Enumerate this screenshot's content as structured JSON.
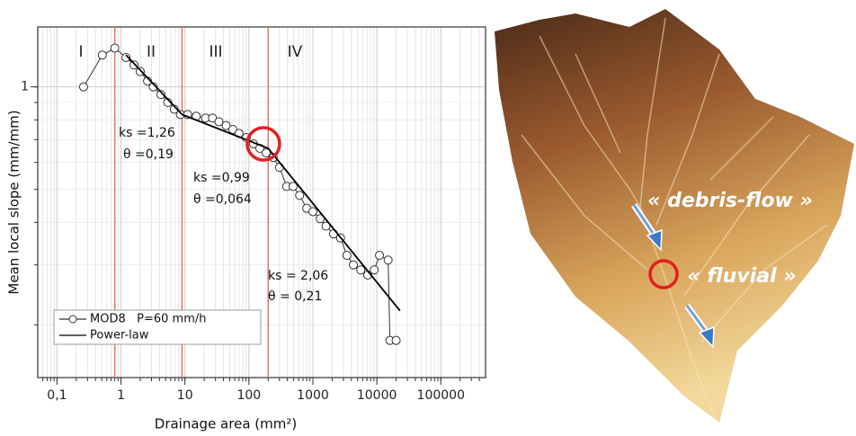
{
  "chart_data": {
    "type": "line",
    "x_label": "Drainage area (mm²)",
    "y_label": "Mean local slope (mm/mm)",
    "xlog": true,
    "ylog": true,
    "grid": true,
    "xlim": [
      0.05,
      500000
    ],
    "ylim": [
      0.14,
      1.5
    ],
    "xticks": [
      {
        "value": 0.1,
        "label": "0,1"
      },
      1,
      10,
      100,
      1000,
      10000,
      100000
    ],
    "yticks": [
      1
    ],
    "region_boundaries": [
      0.8,
      9,
      200
    ],
    "region_labels": [
      "I",
      "II",
      "III",
      "IV"
    ],
    "series": [
      {
        "name": "MOD8   P=60 mm/h",
        "color": "#333333",
        "marker": "circle",
        "x": [
          0.26,
          0.51,
          0.8,
          1.2,
          1.6,
          2.0,
          2.6,
          3.2,
          4.2,
          5.4,
          6.8,
          8.5,
          11,
          15,
          21,
          27,
          34,
          44,
          56,
          70,
          91,
          118,
          148,
          186,
          240,
          300,
          390,
          490,
          620,
          800,
          1000,
          1300,
          1600,
          2100,
          2700,
          3400,
          4300,
          5600,
          7200,
          9100,
          11000,
          15000,
          16000,
          20000
        ],
        "values": [
          1.0,
          1.24,
          1.3,
          1.22,
          1.16,
          1.11,
          1.04,
          1.0,
          0.95,
          0.9,
          0.86,
          0.83,
          0.83,
          0.82,
          0.81,
          0.81,
          0.79,
          0.77,
          0.75,
          0.73,
          0.71,
          0.68,
          0.66,
          0.64,
          0.62,
          0.58,
          0.51,
          0.51,
          0.48,
          0.44,
          0.43,
          0.41,
          0.39,
          0.37,
          0.36,
          0.32,
          0.3,
          0.29,
          0.28,
          0.29,
          0.32,
          0.31,
          0.18,
          0.18
        ]
      },
      {
        "name": "Power-law",
        "color": "#000000",
        "marker": "none",
        "x": [
          1.2,
          9,
          200,
          23000
        ],
        "values": [
          1.24,
          0.83,
          0.66,
          0.22
        ]
      }
    ],
    "annotations": [
      "ks =1,26",
      "θ =0,19",
      "ks =0,99",
      "θ =0,064",
      "ks = 2,06",
      "θ = 0,21"
    ]
  },
  "image": {
    "labels": [
      "« debris-flow »",
      "« fluvial »"
    ]
  }
}
